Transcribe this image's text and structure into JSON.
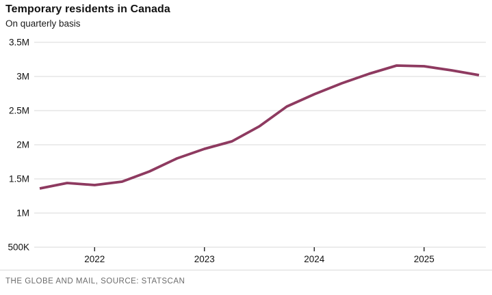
{
  "header": {
    "title": "Temporary residents in Canada",
    "subtitle": "On quarterly basis"
  },
  "footer": {
    "credit": "THE GLOBE AND MAIL, SOURCE: STATSCAN"
  },
  "chart_data": {
    "type": "line",
    "title": "Temporary residents in Canada",
    "subtitle": "On quarterly basis",
    "x": [
      "2021 Q3",
      "2021 Q4",
      "2022 Q1",
      "2022 Q2",
      "2022 Q3",
      "2022 Q4",
      "2023 Q1",
      "2023 Q2",
      "2023 Q3",
      "2023 Q4",
      "2024 Q1",
      "2024 Q2",
      "2024 Q3",
      "2024 Q4",
      "2025 Q1",
      "2025 Q2",
      "2025 Q3"
    ],
    "values_millions": [
      1.36,
      1.44,
      1.41,
      1.46,
      1.61,
      1.8,
      1.94,
      2.05,
      2.27,
      2.56,
      2.74,
      2.9,
      3.04,
      3.16,
      3.15,
      3.09,
      3.02
    ],
    "unit": "persons (millions)",
    "ylim": [
      0.5,
      3.5
    ],
    "y_ticks": [
      {
        "label": "3.5M",
        "value": 3.5
      },
      {
        "label": "3M",
        "value": 3.0
      },
      {
        "label": "2.5M",
        "value": 2.5
      },
      {
        "label": "2M",
        "value": 2.0
      },
      {
        "label": "1.5M",
        "value": 1.5
      },
      {
        "label": "1M",
        "value": 1.0
      },
      {
        "label": "500K",
        "value": 0.5
      }
    ],
    "x_ticks": [
      {
        "label": "2022",
        "index": 2
      },
      {
        "label": "2023",
        "index": 6
      },
      {
        "label": "2024",
        "index": 10
      },
      {
        "label": "2025",
        "index": 14
      }
    ],
    "grid": true,
    "legend": "none",
    "colors": {
      "line": "#8e3a60",
      "gridline": "#d8d8d8",
      "tick": "#111111",
      "axis_text": "#111111",
      "credit_text": "#6b6b6b",
      "divider": "#d9d9d9"
    }
  }
}
